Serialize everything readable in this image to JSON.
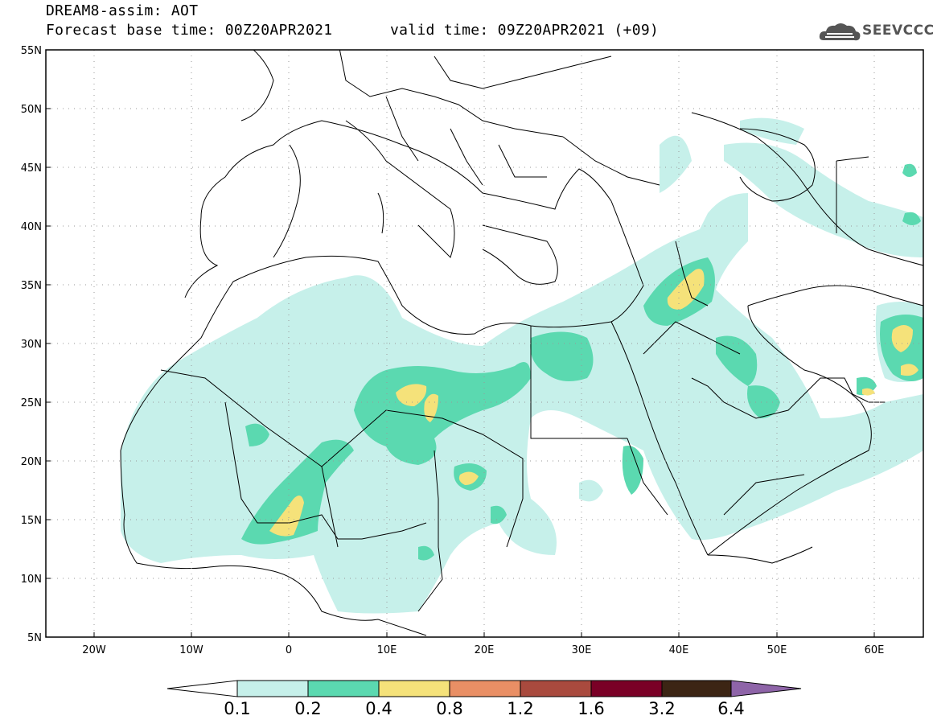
{
  "title": {
    "model_line": "DREAM8-assim: AOT",
    "base_time": "Forecast base time: 00Z20APR2021",
    "valid_time": "valid time: 09Z20APR2021 (+09)"
  },
  "logo": {
    "text": "SEEVCCC",
    "icon": "cloud-icon"
  },
  "map": {
    "lon_range": [
      -25,
      65
    ],
    "lat_range": [
      5,
      55
    ],
    "lat_labels": [
      "55N",
      "50N",
      "45N",
      "40N",
      "35N",
      "30N",
      "25N",
      "20N",
      "15N",
      "10N",
      "5N"
    ],
    "lon_labels": [
      "20W",
      "10W",
      "0",
      "10E",
      "20E",
      "30E",
      "40E",
      "50E",
      "60E"
    ],
    "grid": "dotted"
  },
  "legend": {
    "levels": [
      "0.1",
      "0.2",
      "0.4",
      "0.8",
      "1.2",
      "1.6",
      "3.2",
      "6.4"
    ],
    "colors": [
      "#ffffff",
      "#c6f0ea",
      "#5bd9b0",
      "#f5e27a",
      "#e98f65",
      "#a94a3e",
      "#7a0026",
      "#3c2514",
      "#8e64a8"
    ]
  }
}
